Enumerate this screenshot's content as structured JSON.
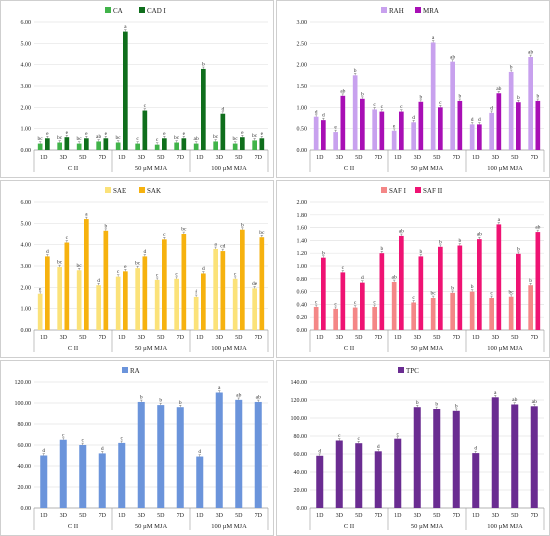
{
  "chart_data": [
    {
      "type": "bar",
      "x": [
        "1D",
        "3D",
        "5D",
        "7D",
        "1D",
        "3D",
        "5D",
        "7D",
        "1D",
        "3D",
        "5D",
        "7D"
      ],
      "groups": [
        "C II",
        "50 µM MJA",
        "100 µM MJA"
      ],
      "ylim": [
        0,
        6
      ],
      "yticks": [
        "0.00",
        "1.00",
        "2.00",
        "3.00",
        "4.00",
        "5.00",
        "6.00"
      ],
      "series": [
        {
          "name": "CA",
          "color": "#41b34a",
          "values": [
            0.3,
            0.35,
            0.3,
            0.4,
            0.35,
            0.3,
            0.25,
            0.35,
            0.3,
            0.4,
            0.3,
            0.45
          ],
          "labels": [
            "bc",
            "bc",
            "bc",
            "ab",
            "bc",
            "c",
            "c",
            "bc",
            "ab",
            "bc",
            "bc",
            "bc"
          ]
        },
        {
          "name": "CAD I",
          "color": "#0f6e1c",
          "values": [
            0.55,
            0.6,
            0.55,
            0.55,
            5.55,
            1.85,
            0.55,
            0.55,
            3.8,
            1.7,
            0.6,
            0.55
          ],
          "labels": [
            "e",
            "e",
            "e",
            "e",
            "a",
            "c",
            "e",
            "e",
            "b",
            "d",
            "e",
            "e"
          ]
        }
      ]
    },
    {
      "type": "bar",
      "x": [
        "1D",
        "3D",
        "5D",
        "7D",
        "1D",
        "3D",
        "5D",
        "7D",
        "1D",
        "3D",
        "5D",
        "7D"
      ],
      "groups": [
        "C II",
        "50 µM MJA",
        "100 µM MJA"
      ],
      "ylim": [
        0,
        3
      ],
      "yticks": [
        "0.00",
        "0.50",
        "1.00",
        "1.50",
        "2.00",
        "2.50",
        "3.00"
      ],
      "series": [
        {
          "name": "RAH",
          "color": "#c8a1ee",
          "values": [
            0.78,
            0.42,
            1.75,
            0.95,
            0.45,
            0.65,
            2.52,
            2.07,
            0.6,
            0.87,
            1.83,
            2.18
          ],
          "labels": [
            "d",
            "e",
            "b",
            "c",
            "e",
            "d",
            "a",
            "ab",
            "d",
            "d",
            "b",
            "ab"
          ]
        },
        {
          "name": "MRA",
          "color": "#a80fb5",
          "values": [
            0.7,
            1.27,
            1.2,
            0.9,
            0.9,
            1.13,
            1.0,
            1.15,
            0.6,
            1.33,
            1.12,
            1.15
          ],
          "labels": [
            "d",
            "ab",
            "b",
            "c",
            "c",
            "b",
            "c",
            "b",
            "d",
            "ab",
            "b",
            "b"
          ]
        }
      ]
    },
    {
      "type": "bar",
      "x": [
        "1D",
        "3D",
        "5D",
        "7D",
        "1D",
        "3D",
        "5D",
        "7D",
        "1D",
        "3D",
        "5D",
        "7D"
      ],
      "groups": [
        "C II",
        "50 µM MJA",
        "100 µM MJA"
      ],
      "ylim": [
        0,
        6
      ],
      "yticks": [
        "0.00",
        "1.00",
        "2.00",
        "3.00",
        "4.00",
        "5.00",
        "6.00"
      ],
      "series": [
        {
          "name": "SAE",
          "color": "#fbe27a",
          "values": [
            1.7,
            2.95,
            2.8,
            2.1,
            2.5,
            2.9,
            2.35,
            2.4,
            1.55,
            3.8,
            2.4,
            1.95
          ],
          "labels": [
            "e",
            "bc",
            "bc",
            "d",
            "c",
            "bc",
            "c",
            "c",
            "f",
            "a",
            "c",
            "de"
          ]
        },
        {
          "name": "SAK",
          "color": "#f6b20f",
          "values": [
            3.45,
            4.1,
            5.2,
            4.65,
            2.75,
            3.45,
            4.25,
            4.5,
            2.65,
            3.7,
            4.7,
            4.35
          ],
          "labels": [
            "d",
            "c",
            "a",
            "b",
            "e",
            "d",
            "c",
            "bc",
            "d",
            "cd",
            "b",
            "bc"
          ]
        }
      ]
    },
    {
      "type": "bar",
      "x": [
        "1D",
        "3D",
        "5D",
        "7D",
        "1D",
        "3D",
        "5D",
        "7D",
        "1D",
        "3D",
        "5D",
        "7D"
      ],
      "groups": [
        "C II",
        "50 µM MJA",
        "100 µM MJA"
      ],
      "ylim": [
        0,
        2
      ],
      "yticks": [
        "0.00",
        "0.20",
        "0.40",
        "0.60",
        "0.80",
        "1.00",
        "1.20",
        "1.40",
        "1.60",
        "1.80",
        "2.00"
      ],
      "series": [
        {
          "name": "SAF I",
          "color": "#f48787",
          "values": [
            0.36,
            0.33,
            0.35,
            0.36,
            0.75,
            0.43,
            0.5,
            0.58,
            0.6,
            0.5,
            0.52,
            0.7
          ],
          "labels": [
            "c",
            "c",
            "c",
            "c",
            "ab",
            "c",
            "bc",
            "b",
            "b",
            "c",
            "bc",
            "b"
          ]
        },
        {
          "name": "SAF II",
          "color": "#ef1373",
          "values": [
            1.13,
            0.9,
            0.74,
            1.2,
            1.47,
            1.15,
            1.3,
            1.32,
            1.42,
            1.65,
            1.19,
            1.53
          ],
          "labels": [
            "b",
            "c",
            "d",
            "b",
            "ab",
            "b",
            "b",
            "b",
            "ab",
            "a",
            "b",
            "ab"
          ]
        }
      ]
    },
    {
      "type": "bar",
      "x": [
        "1D",
        "3D",
        "5D",
        "7D",
        "1D",
        "3D",
        "5D",
        "7D",
        "1D",
        "3D",
        "5D",
        "7D"
      ],
      "groups": [
        "C II",
        "50 µM MJA",
        "100 µM MJA"
      ],
      "ylim": [
        0,
        120
      ],
      "yticks": [
        "0.00",
        "20.00",
        "40.00",
        "60.00",
        "80.00",
        "100.00",
        "120.00"
      ],
      "series": [
        {
          "name": "RA",
          "color": "#6b94db",
          "values": [
            50,
            65,
            60,
            52,
            62,
            101,
            98,
            96,
            49,
            110,
            103,
            101
          ],
          "labels": [
            "d",
            "c",
            "c",
            "d",
            "c",
            "b",
            "b",
            "b",
            "d",
            "a",
            "ab",
            "ab"
          ]
        }
      ]
    },
    {
      "type": "bar",
      "x": [
        "1D",
        "3D",
        "5D",
        "7D",
        "1D",
        "3D",
        "5D",
        "7D",
        "1D",
        "3D",
        "5D",
        "7D"
      ],
      "groups": [
        "C II",
        "50 µM MJA",
        "100 µM MJA"
      ],
      "ylim": [
        0,
        140
      ],
      "yticks": [
        "0.00",
        "20.00",
        "40.00",
        "60.00",
        "80.00",
        "100.00",
        "120.00",
        "140.00"
      ],
      "series": [
        {
          "name": "TPC",
          "color": "#6a2c91",
          "values": [
            58,
            75,
            72,
            63,
            77,
            112,
            110,
            108,
            61,
            123,
            115,
            113
          ],
          "labels": [
            "d",
            "c",
            "c",
            "d",
            "c",
            "b",
            "b",
            "b",
            "d",
            "a",
            "ab",
            "ab"
          ]
        }
      ]
    }
  ]
}
